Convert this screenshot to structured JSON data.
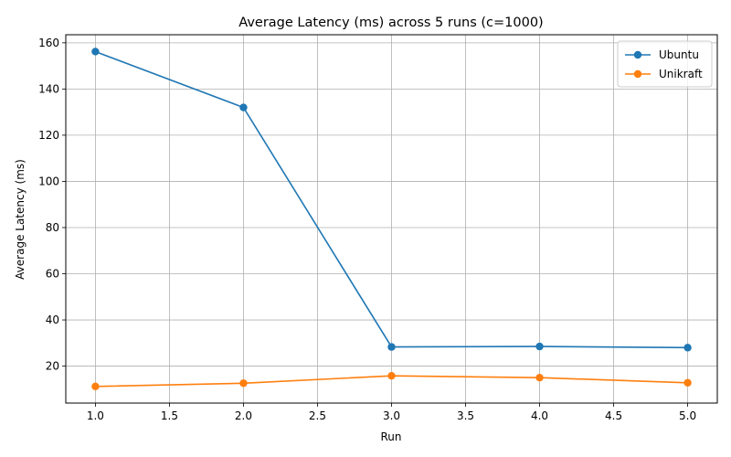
{
  "chart_data": {
    "type": "line",
    "title": "Average Latency (ms) across 5 runs (c=1000)",
    "xlabel": "Run",
    "ylabel": "Average Latency (ms)",
    "x": [
      1,
      2,
      3,
      4,
      5
    ],
    "xlim": [
      0.8,
      5.2
    ],
    "ylim": [
      4.0,
      163.5
    ],
    "xticks": [
      1.0,
      1.5,
      2.0,
      2.5,
      3.0,
      3.5,
      4.0,
      4.5,
      5.0
    ],
    "xtick_labels": [
      "1.0",
      "1.5",
      "2.0",
      "2.5",
      "3.0",
      "3.5",
      "4.0",
      "4.5",
      "5.0"
    ],
    "yticks": [
      20,
      40,
      60,
      80,
      100,
      120,
      140,
      160
    ],
    "ytick_labels": [
      "20",
      "40",
      "60",
      "80",
      "100",
      "120",
      "140",
      "160"
    ],
    "grid": true,
    "legend_position": "top-right",
    "series": [
      {
        "name": "Ubuntu",
        "color": "#1f77b4",
        "marker": "circle",
        "values": [
          156.2,
          132.0,
          28.3,
          28.5,
          28.0
        ]
      },
      {
        "name": "Unikraft",
        "color": "#ff7f0e",
        "marker": "circle",
        "values": [
          11.2,
          12.6,
          15.8,
          15.0,
          12.8
        ]
      }
    ]
  }
}
